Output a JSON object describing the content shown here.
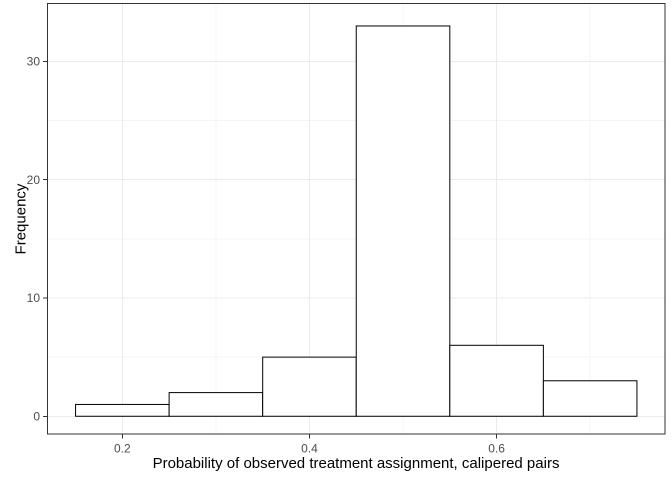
{
  "chart_data": {
    "type": "bar",
    "subtype": "histogram",
    "title": "",
    "xlabel": "Probability of observed treatment assignment, calipered pairs",
    "ylabel": "Frequency",
    "bin_edges": [
      0.15,
      0.25,
      0.35,
      0.45,
      0.55,
      0.65,
      0.75
    ],
    "counts": [
      1,
      2,
      5,
      33,
      6,
      3
    ],
    "x_ticks": [
      {
        "value": 0.2,
        "label": "0.2"
      },
      {
        "value": 0.4,
        "label": "0.4"
      },
      {
        "value": 0.6,
        "label": "0.6"
      }
    ],
    "y_ticks": [
      {
        "value": 0,
        "label": "0"
      },
      {
        "value": 10,
        "label": "10"
      },
      {
        "value": 20,
        "label": "20"
      },
      {
        "value": 30,
        "label": "30"
      }
    ],
    "x_minor_gridlines": [
      0.3,
      0.5,
      0.7
    ],
    "y_minor_gridlines": [
      5,
      15,
      25
    ],
    "xlim": [
      0.12,
      0.78
    ],
    "ylim": [
      -1.5,
      34.9
    ],
    "grid": "on",
    "legend": "none",
    "colors": {
      "background": "#ffffff",
      "panel_background": "#ffffff",
      "grid_major": "#ebebeb",
      "grid_minor": "#f4f4f4",
      "panel_border": "#333333",
      "bar_fill": "#ffffff",
      "bar_stroke": "#000000",
      "tick_mark": "#333333",
      "tick_label": "#4d4d4d",
      "axis_title": "#000000"
    }
  }
}
